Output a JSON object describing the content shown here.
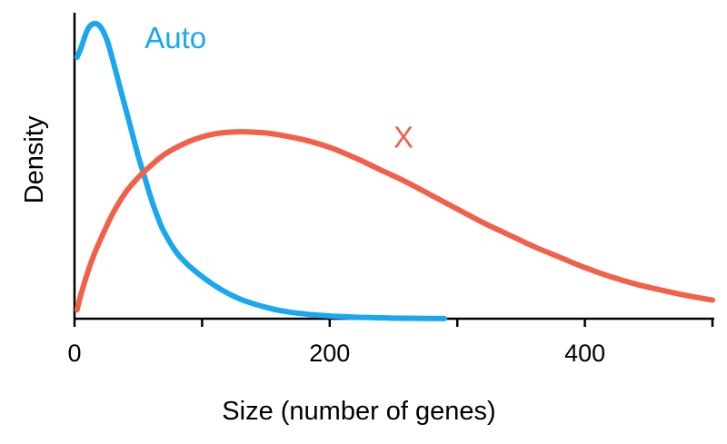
{
  "chart_data": {
    "type": "line",
    "title": "",
    "xlabel": "Size (number of genes)",
    "ylabel": "Density",
    "xlim": [
      0,
      500
    ],
    "ylim": [
      0,
      1
    ],
    "x_ticks": [
      0,
      100,
      200,
      300,
      400,
      500
    ],
    "x_tick_labels": [
      "0",
      "",
      "200",
      "",
      "400",
      ""
    ],
    "y_ticks_shown": false,
    "grid": false,
    "legend": "none (series labeled directly on curves)",
    "series": [
      {
        "name": "Auto",
        "color": "#1AA7EE",
        "x": [
          2,
          5,
          10,
          14,
          18,
          22,
          26,
          30,
          35,
          40,
          45,
          50,
          55,
          60,
          65,
          70,
          80,
          90,
          100,
          110,
          120,
          130,
          140,
          150,
          160,
          170,
          180,
          190,
          200,
          210,
          220,
          230,
          240,
          250,
          260,
          270,
          280,
          290
        ],
        "y": [
          0.87,
          0.9,
          0.96,
          0.98,
          0.98,
          0.96,
          0.92,
          0.86,
          0.78,
          0.7,
          0.62,
          0.54,
          0.47,
          0.4,
          0.34,
          0.29,
          0.22,
          0.175,
          0.14,
          0.11,
          0.085,
          0.065,
          0.05,
          0.038,
          0.028,
          0.021,
          0.016,
          0.012,
          0.009,
          0.007,
          0.005,
          0.004,
          0.003,
          0.002,
          0.0015,
          0.001,
          0.0008,
          0.0005
        ]
      },
      {
        "name": "X",
        "color": "#F2604A",
        "x": [
          2,
          5,
          10,
          15,
          20,
          30,
          40,
          50,
          60,
          70,
          80,
          90,
          100,
          110,
          120,
          130,
          140,
          150,
          160,
          180,
          200,
          220,
          240,
          260,
          280,
          300,
          320,
          340,
          360,
          380,
          400,
          420,
          440,
          460,
          480,
          500
        ],
        "y": [
          0.03,
          0.08,
          0.15,
          0.21,
          0.26,
          0.35,
          0.42,
          0.47,
          0.51,
          0.545,
          0.57,
          0.59,
          0.605,
          0.615,
          0.62,
          0.622,
          0.621,
          0.618,
          0.612,
          0.595,
          0.57,
          0.535,
          0.495,
          0.455,
          0.41,
          0.365,
          0.32,
          0.28,
          0.24,
          0.205,
          0.17,
          0.14,
          0.115,
          0.095,
          0.077,
          0.062
        ]
      }
    ],
    "annotations": [
      {
        "text": "Auto",
        "series": "Auto",
        "x": 55,
        "y": 0.9
      },
      {
        "text": "X",
        "series": "X",
        "x": 250,
        "y": 0.57
      }
    ]
  }
}
